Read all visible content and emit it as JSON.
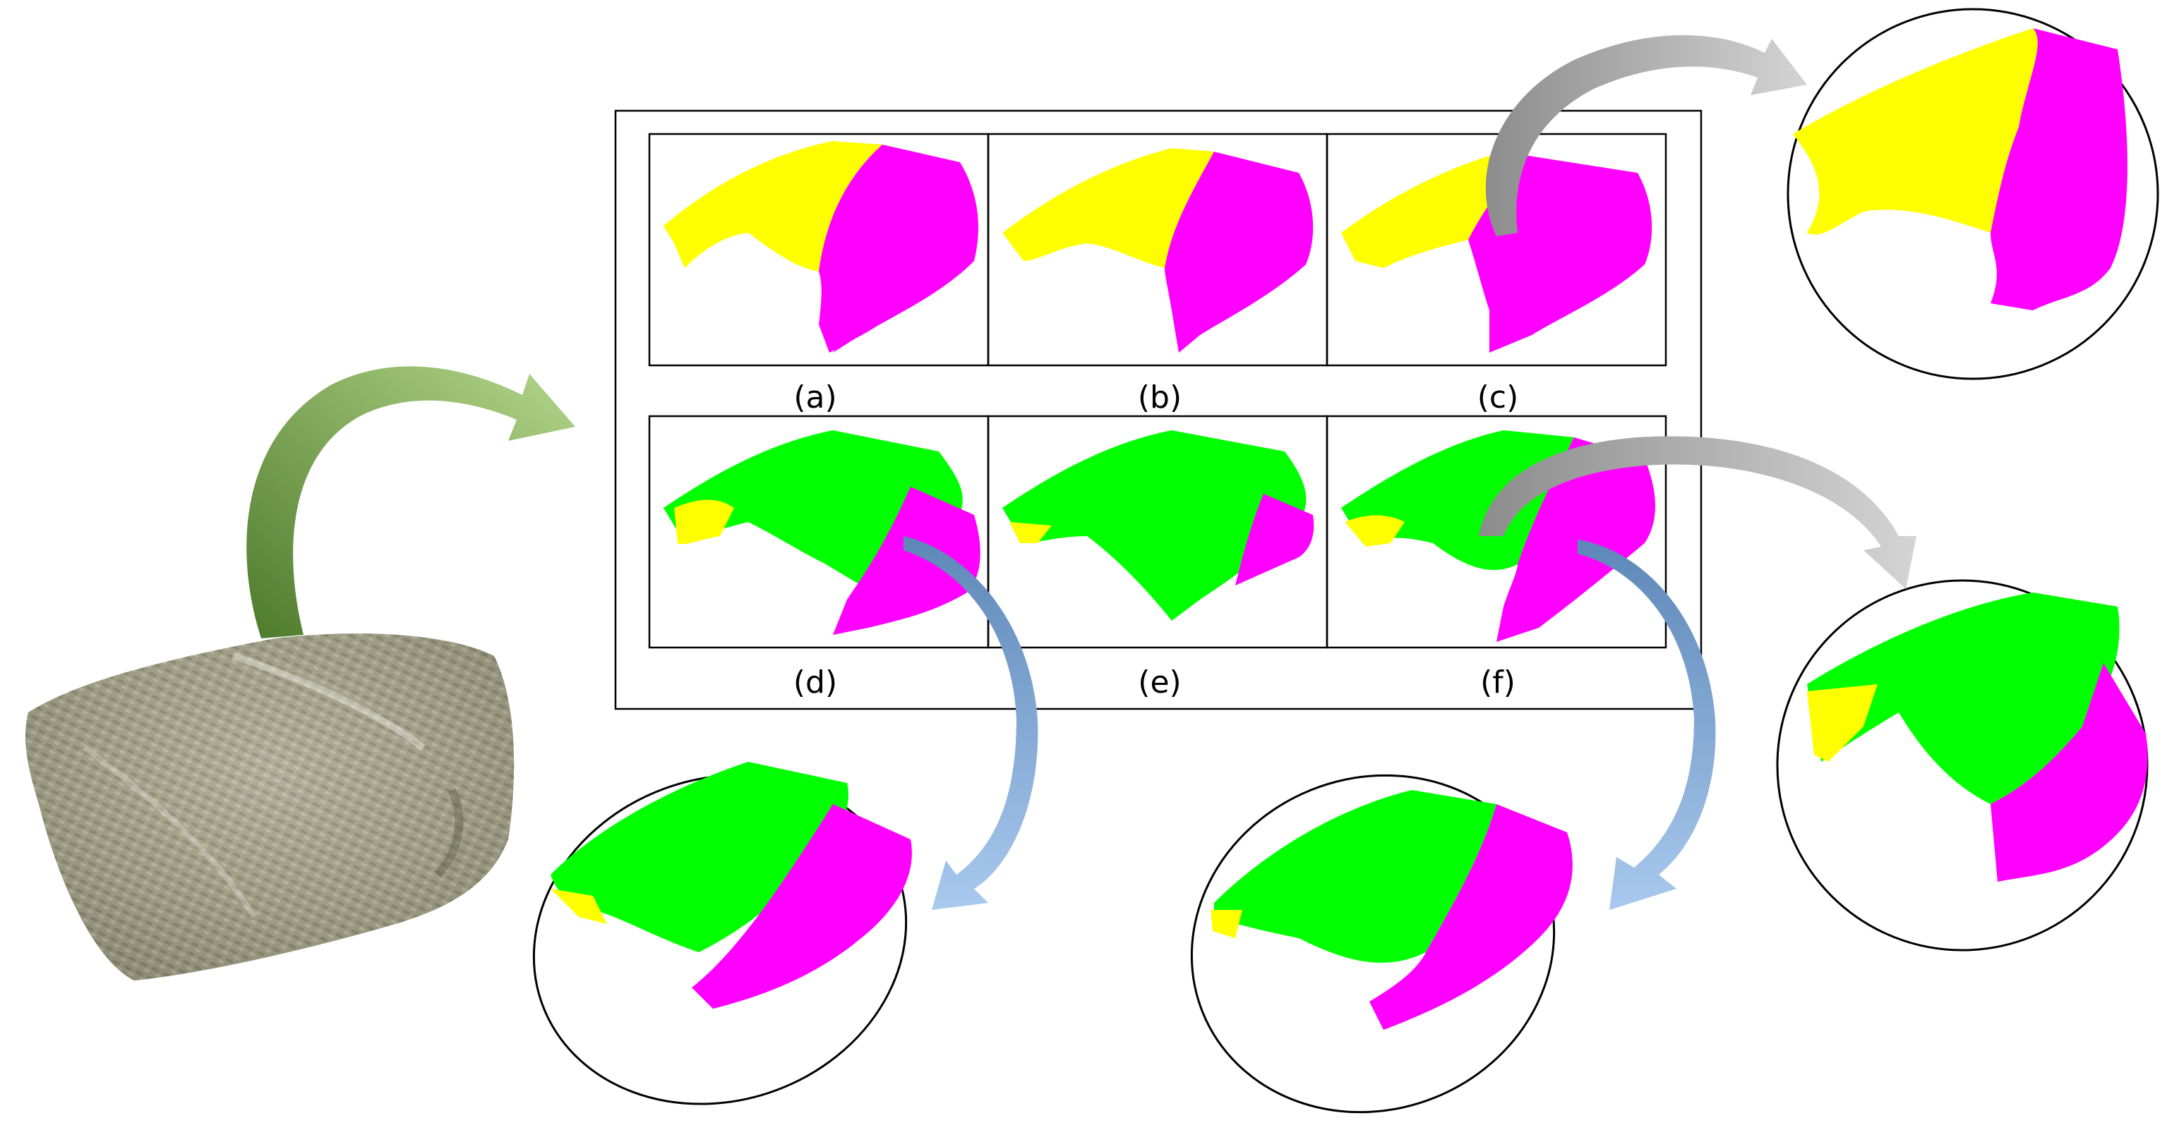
{
  "panels": [
    {
      "id": "a",
      "label": "(a)",
      "segments": [
        "yellow",
        "magenta"
      ]
    },
    {
      "id": "b",
      "label": "(b)",
      "segments": [
        "yellow",
        "magenta"
      ]
    },
    {
      "id": "c",
      "label": "(c)",
      "segments": [
        "yellow",
        "magenta"
      ]
    },
    {
      "id": "d",
      "label": "(d)",
      "segments": [
        "yellow",
        "green",
        "magenta"
      ]
    },
    {
      "id": "e",
      "label": "(e)",
      "segments": [
        "yellow",
        "green",
        "magenta"
      ]
    },
    {
      "id": "f",
      "label": "(f)",
      "segments": [
        "yellow",
        "green",
        "magenta"
      ]
    }
  ],
  "colors": {
    "yellow": "#ffff00",
    "green": "#00ff00",
    "magenta": "#ff00ff",
    "arrow_green": "#8fbf5a",
    "arrow_blue": "#7aa6d6",
    "arrow_gray": "#aaaaaa",
    "bag": "#9c9a82"
  },
  "zoom_callouts": [
    {
      "source": "c",
      "segments": [
        "yellow",
        "magenta"
      ]
    },
    {
      "source": "f",
      "segments": [
        "yellow",
        "green",
        "magenta"
      ]
    },
    {
      "source": "d",
      "segments": [
        "yellow",
        "green",
        "magenta"
      ]
    },
    {
      "source": "f",
      "segments": [
        "yellow",
        "green",
        "magenta"
      ]
    }
  ]
}
